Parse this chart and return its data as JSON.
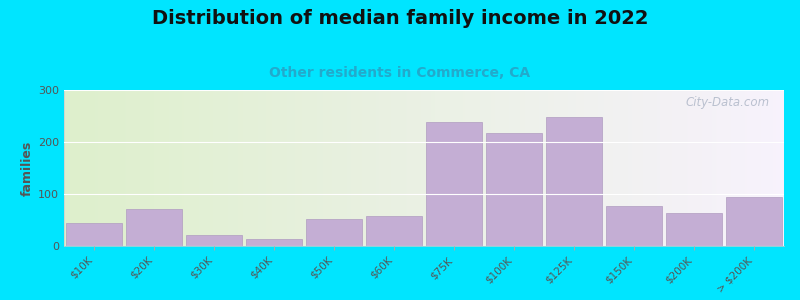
{
  "title": "Distribution of median family income in 2022",
  "subtitle": "Other residents in Commerce, CA",
  "categories": [
    "$10K",
    "$20K",
    "$30K",
    "$40K",
    "$50K",
    "$60K",
    "$75K",
    "$100K",
    "$125K",
    "$150K",
    "$200K",
    "> $200K"
  ],
  "values": [
    45,
    72,
    22,
    13,
    52,
    58,
    238,
    217,
    248,
    77,
    63,
    95
  ],
  "bar_color": "#c4aed4",
  "bar_edge_color": "#b09cc0",
  "title_fontsize": 14,
  "subtitle_fontsize": 10,
  "subtitle_color": "#22aacc",
  "ylabel": "families",
  "ylabel_fontsize": 9,
  "ylim": [
    0,
    300
  ],
  "yticks": [
    0,
    100,
    200,
    300
  ],
  "background_outer": "#00e5ff",
  "watermark_text": "City-Data.com",
  "watermark_color": "#b0b8c8"
}
